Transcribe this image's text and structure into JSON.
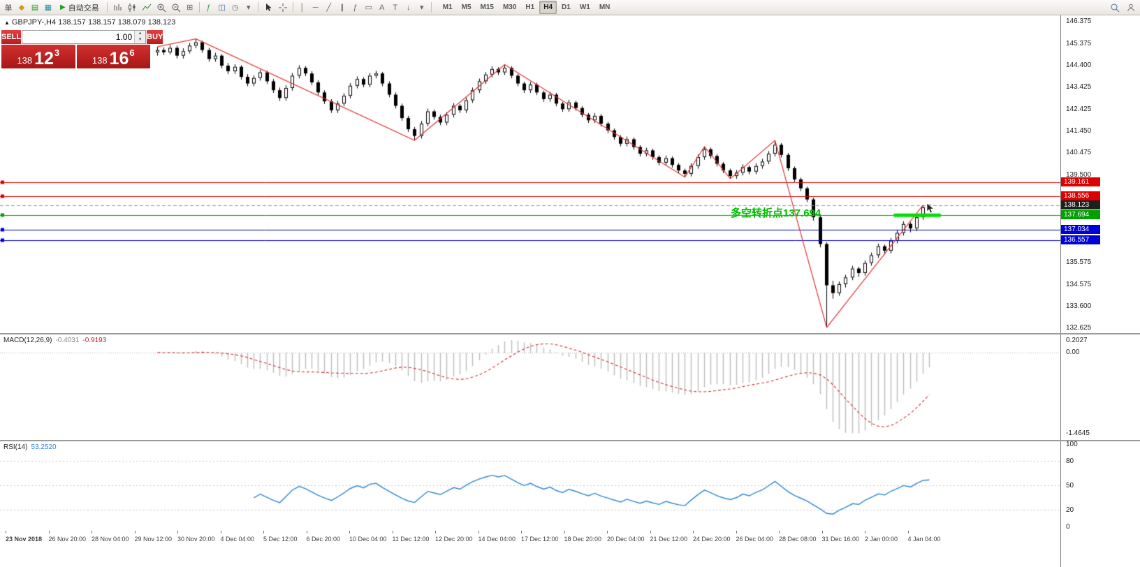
{
  "toolbar": {
    "new_order_label": "单",
    "auto_trading_label": "自动交易",
    "timeframes": [
      "M1",
      "M5",
      "M15",
      "M30",
      "H1",
      "H4",
      "D1",
      "W1",
      "MN"
    ],
    "active_timeframe": "H4",
    "icons": {
      "charts": "◆",
      "profiles": "▤",
      "market_watch": "▦",
      "auto_play": "▶",
      "tile_windows": "⊞",
      "indicators": "ƒ",
      "objects": "◫",
      "periods": "◷",
      "dropdown": "▾",
      "vertical_line": "│",
      "horizontal_line": "─",
      "trendline": "╱",
      "channel": "∥",
      "fibonacci": "ƒ",
      "rectangle": "▭",
      "text": "A",
      "label": "T",
      "arrow": "↓"
    }
  },
  "chart": {
    "symbol_line": "GBPJPY-,H4  138.157 138.157 138.079 138.123",
    "collapse_icon": "▲",
    "annotation": {
      "text": "多空转折点137.694",
      "color": "#00bb00"
    },
    "trade_panel": {
      "sell_label": "SELL",
      "buy_label": "BUY",
      "lot": "1.00",
      "sell_price_small": "138",
      "sell_price_big": "12",
      "sell_price_sup": "3",
      "buy_price_small": "138",
      "buy_price_big": "16",
      "buy_price_sup": "6"
    },
    "y_axis_labels": [
      "146.375",
      "145.375",
      "144.400",
      "143.425",
      "142.425",
      "141.450",
      "140.475",
      "139.500",
      "135.575",
      "134.575",
      "133.600",
      "132.625"
    ],
    "price_tags": [
      {
        "label": "139.161",
        "price": 139.161,
        "color": "#dd0000",
        "line": "solid"
      },
      {
        "label": "138.556",
        "price": 138.556,
        "color": "#dd0000",
        "line": "solid"
      },
      {
        "label": "138.123",
        "price": 138.123,
        "color": "#1f1f1f",
        "line": "dashed"
      },
      {
        "label": "137.694",
        "price": 137.694,
        "color": "#00a000",
        "line": "solid"
      },
      {
        "label": "137.034",
        "price": 137.034,
        "color": "#0000d8",
        "line": "solid"
      },
      {
        "label": "136.557",
        "price": 136.557,
        "color": "#0000d8",
        "line": "solid"
      }
    ],
    "green_segment": {
      "price": 137.694,
      "start_index": 114.5,
      "end_index": 121.8,
      "color": "#00e000"
    }
  },
  "chart_data": {
    "type": "candlestick",
    "symbol": "GBPJPY-",
    "timeframe": "H4",
    "ylim": [
      132.625,
      146.375
    ],
    "x_labels": [
      "23 Nov 2018",
      "26 Nov 20:00",
      "28 Nov 04:00",
      "29 Nov 12:00",
      "30 Nov 20:00",
      "4 Dec 04:00",
      "5 Dec 12:00",
      "6 Dec 20:00",
      "10 Dec 04:00",
      "11 Dec 12:00",
      "12 Dec 20:00",
      "14 Dec 04:00",
      "17 Dec 12:00",
      "18 Dec 20:00",
      "20 Dec 04:00",
      "21 Dec 12:00",
      "24 Dec 20:00",
      "26 Dec 04:00",
      "28 Dec 08:00",
      "31 Dec 16:00",
      "2 Jan 00:00",
      "4 Jan 04:00"
    ],
    "zigzag": [
      [
        0,
        145.25
      ],
      [
        6,
        145.6
      ],
      [
        40,
        141.05
      ],
      [
        54,
        144.45
      ],
      [
        82,
        139.4
      ],
      [
        85,
        140.77
      ],
      [
        89,
        139.33
      ],
      [
        96,
        141.05
      ],
      [
        104,
        132.66
      ],
      [
        119,
        138.15
      ]
    ],
    "candles": [
      [
        145.0,
        145.25,
        144.85,
        145.1
      ],
      [
        145.1,
        145.22,
        144.88,
        145.0
      ],
      [
        145.0,
        145.32,
        144.9,
        145.2
      ],
      [
        145.2,
        145.3,
        144.72,
        144.85
      ],
      [
        144.85,
        145.18,
        144.72,
        145.05
      ],
      [
        145.05,
        145.42,
        144.95,
        145.3
      ],
      [
        145.3,
        145.6,
        145.18,
        145.45
      ],
      [
        145.45,
        145.52,
        144.98,
        145.1
      ],
      [
        145.1,
        145.2,
        144.58,
        144.7
      ],
      [
        144.7,
        144.98,
        144.58,
        144.85
      ],
      [
        144.85,
        144.92,
        144.28,
        144.4
      ],
      [
        144.4,
        144.52,
        144.02,
        144.15
      ],
      [
        144.15,
        144.47,
        144.03,
        144.35
      ],
      [
        144.35,
        144.42,
        143.78,
        143.9
      ],
      [
        143.9,
        144.02,
        143.48,
        143.6
      ],
      [
        143.6,
        143.97,
        143.48,
        143.85
      ],
      [
        143.85,
        144.22,
        143.73,
        144.1
      ],
      [
        144.1,
        144.18,
        143.58,
        143.7
      ],
      [
        143.7,
        143.8,
        143.18,
        143.3
      ],
      [
        143.3,
        143.42,
        142.82,
        142.95
      ],
      [
        142.95,
        143.52,
        142.83,
        143.4
      ],
      [
        143.4,
        144.07,
        143.28,
        143.95
      ],
      [
        143.95,
        144.42,
        143.83,
        144.3
      ],
      [
        144.3,
        144.38,
        143.93,
        144.05
      ],
      [
        144.05,
        144.15,
        143.53,
        143.65
      ],
      [
        143.65,
        143.75,
        143.08,
        143.2
      ],
      [
        143.2,
        143.3,
        142.68,
        142.8
      ],
      [
        142.8,
        142.9,
        142.28,
        142.4
      ],
      [
        142.4,
        142.82,
        142.28,
        142.7
      ],
      [
        142.7,
        143.17,
        142.58,
        143.05
      ],
      [
        143.05,
        143.62,
        142.93,
        143.5
      ],
      [
        143.5,
        143.92,
        143.38,
        143.8
      ],
      [
        143.8,
        143.88,
        143.43,
        143.55
      ],
      [
        143.55,
        144.07,
        143.43,
        143.95
      ],
      [
        143.95,
        144.17,
        143.83,
        144.05
      ],
      [
        144.05,
        144.12,
        143.48,
        143.6
      ],
      [
        143.6,
        143.7,
        142.98,
        143.1
      ],
      [
        143.1,
        143.2,
        142.48,
        142.6
      ],
      [
        142.6,
        142.7,
        141.93,
        142.05
      ],
      [
        142.05,
        142.15,
        141.43,
        141.55
      ],
      [
        141.55,
        141.65,
        141.05,
        141.25
      ],
      [
        141.25,
        141.92,
        141.13,
        141.8
      ],
      [
        141.8,
        142.47,
        141.68,
        142.35
      ],
      [
        142.35,
        142.43,
        141.98,
        142.1
      ],
      [
        142.1,
        142.2,
        141.73,
        141.85
      ],
      [
        141.85,
        142.32,
        141.73,
        142.2
      ],
      [
        142.2,
        142.72,
        142.08,
        142.6
      ],
      [
        142.6,
        142.68,
        142.28,
        142.4
      ],
      [
        142.4,
        142.97,
        142.28,
        142.85
      ],
      [
        142.85,
        143.42,
        142.73,
        143.3
      ],
      [
        143.3,
        143.82,
        143.18,
        143.7
      ],
      [
        143.7,
        144.12,
        143.58,
        144.0
      ],
      [
        144.0,
        144.37,
        143.88,
        144.25
      ],
      [
        144.25,
        144.33,
        143.98,
        144.1
      ],
      [
        144.1,
        144.45,
        143.98,
        144.3
      ],
      [
        144.3,
        144.38,
        143.83,
        143.95
      ],
      [
        143.95,
        144.03,
        143.48,
        143.6
      ],
      [
        143.6,
        143.68,
        143.18,
        143.3
      ],
      [
        143.3,
        143.67,
        143.18,
        143.55
      ],
      [
        143.55,
        143.63,
        143.08,
        143.2
      ],
      [
        143.2,
        143.28,
        142.78,
        142.9
      ],
      [
        142.9,
        143.22,
        142.78,
        143.1
      ],
      [
        143.1,
        143.18,
        142.58,
        142.7
      ],
      [
        142.7,
        142.78,
        142.33,
        142.45
      ],
      [
        142.45,
        142.87,
        142.33,
        142.75
      ],
      [
        142.75,
        142.83,
        142.38,
        142.5
      ],
      [
        142.5,
        142.58,
        142.08,
        142.2
      ],
      [
        142.2,
        142.28,
        141.83,
        141.95
      ],
      [
        141.95,
        142.27,
        141.83,
        142.15
      ],
      [
        142.15,
        142.23,
        141.68,
        141.8
      ],
      [
        141.8,
        141.88,
        141.38,
        141.5
      ],
      [
        141.5,
        141.58,
        141.08,
        141.2
      ],
      [
        141.2,
        141.28,
        140.78,
        140.9
      ],
      [
        140.9,
        141.22,
        140.78,
        141.1
      ],
      [
        141.1,
        141.18,
        140.63,
        140.75
      ],
      [
        140.75,
        140.83,
        140.33,
        140.45
      ],
      [
        140.45,
        140.72,
        140.33,
        140.6
      ],
      [
        140.6,
        140.68,
        140.18,
        140.3
      ],
      [
        140.3,
        140.38,
        139.93,
        140.05
      ],
      [
        140.05,
        140.37,
        139.93,
        140.25
      ],
      [
        140.25,
        140.33,
        139.83,
        139.95
      ],
      [
        139.95,
        140.03,
        139.58,
        139.7
      ],
      [
        139.7,
        139.78,
        139.4,
        139.55
      ],
      [
        139.55,
        140.02,
        139.43,
        139.9
      ],
      [
        139.9,
        140.42,
        139.78,
        140.3
      ],
      [
        140.3,
        140.77,
        140.18,
        140.65
      ],
      [
        140.65,
        140.73,
        140.23,
        140.35
      ],
      [
        140.35,
        140.43,
        139.88,
        140.0
      ],
      [
        140.0,
        140.08,
        139.58,
        139.7
      ],
      [
        139.7,
        139.78,
        139.33,
        139.45
      ],
      [
        139.45,
        139.72,
        139.33,
        139.6
      ],
      [
        139.6,
        139.97,
        139.48,
        139.85
      ],
      [
        139.85,
        139.93,
        139.53,
        139.65
      ],
      [
        139.65,
        140.02,
        139.53,
        139.9
      ],
      [
        139.9,
        140.22,
        139.78,
        140.1
      ],
      [
        140.1,
        140.57,
        139.98,
        140.45
      ],
      [
        140.45,
        141.05,
        140.33,
        140.85
      ],
      [
        140.85,
        140.93,
        140.28,
        140.4
      ],
      [
        140.4,
        140.48,
        139.68,
        139.8
      ],
      [
        139.8,
        139.88,
        139.18,
        139.3
      ],
      [
        139.3,
        139.38,
        138.78,
        138.9
      ],
      [
        138.9,
        138.98,
        138.28,
        138.4
      ],
      [
        138.4,
        138.48,
        137.45,
        137.6
      ],
      [
        137.6,
        137.68,
        136.25,
        136.4
      ],
      [
        136.4,
        136.48,
        132.66,
        134.55
      ],
      [
        134.55,
        134.75,
        133.95,
        134.2
      ],
      [
        134.2,
        134.72,
        134.08,
        134.6
      ],
      [
        134.6,
        135.02,
        134.45,
        134.9
      ],
      [
        134.9,
        135.42,
        134.78,
        135.3
      ],
      [
        135.3,
        135.38,
        134.93,
        135.1
      ],
      [
        135.1,
        135.67,
        134.98,
        135.55
      ],
      [
        135.55,
        136.02,
        135.43,
        135.9
      ],
      [
        135.9,
        136.42,
        135.78,
        136.3
      ],
      [
        136.3,
        136.38,
        135.93,
        136.1
      ],
      [
        136.1,
        136.67,
        135.98,
        136.55
      ],
      [
        136.55,
        137.02,
        136.43,
        136.9
      ],
      [
        136.9,
        137.42,
        136.78,
        137.3
      ],
      [
        137.3,
        137.38,
        136.93,
        137.1
      ],
      [
        137.1,
        137.72,
        136.98,
        137.6
      ],
      [
        137.6,
        138.15,
        137.48,
        138.05
      ],
      [
        138.157,
        138.157,
        138.079,
        138.123
      ]
    ],
    "macd": {
      "label": "MACD(12,26,9)",
      "value_main": "-0.4031",
      "value_signal": "-0.9193",
      "axis": [
        "0.2027",
        "0.00",
        "-1.4645"
      ],
      "fast": 12,
      "slow": 26,
      "signal_period": 9
    },
    "rsi": {
      "label": "RSI(14)",
      "value": "53.2520",
      "axis": [
        "100",
        "80",
        "50",
        "20",
        "0"
      ],
      "levels": [
        80,
        50,
        20
      ],
      "period": 14
    }
  }
}
